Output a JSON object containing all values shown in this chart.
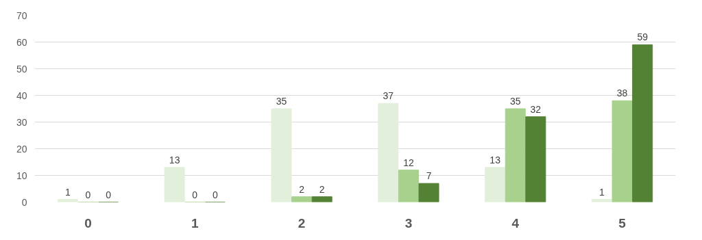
{
  "chart_data": {
    "type": "bar",
    "categories": [
      "0",
      "1",
      "2",
      "3",
      "4",
      "5"
    ],
    "series": [
      {
        "color": "#e2efda",
        "values": [
          1,
          13,
          35,
          37,
          13,
          1
        ]
      },
      {
        "color": "#a9d18e",
        "values": [
          0,
          0,
          2,
          12,
          35,
          38
        ]
      },
      {
        "color": "#548235",
        "values": [
          0,
          0,
          2,
          7,
          32,
          59
        ]
      }
    ],
    "ylim": [
      0,
      70
    ],
    "yticks": [
      0,
      10,
      20,
      30,
      40,
      50,
      60,
      70
    ],
    "grid": "y",
    "data_labels": true
  }
}
